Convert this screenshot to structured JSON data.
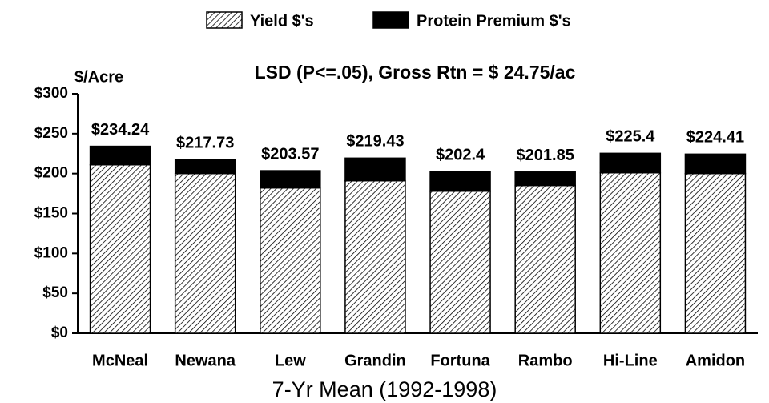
{
  "chart_data": {
    "type": "stacked_bar",
    "subtitle": "LSD (P<=.05), Gross Rtn = $ 24.75/ac",
    "y_label": "$/Acre",
    "x_label": "7-Yr Mean (1992-1998)",
    "categories": [
      "McNeal",
      "Newana",
      "Lew",
      "Grandin",
      "Fortuna",
      "Rambo",
      "Hi-Line",
      "Amidon"
    ],
    "series": [
      {
        "name": "Yield $'s",
        "color": "#000000",
        "values": [
          211,
          200,
          182,
          191,
          178,
          185,
          201,
          200
        ]
      },
      {
        "name": "Protein Premium $'s",
        "color": "#000000",
        "values": [
          23.2,
          17.7,
          21.6,
          28.4,
          24.4,
          16.9,
          24.4,
          24.4
        ]
      }
    ],
    "totals": [
      234.24,
      217.73,
      203.57,
      219.43,
      202.4,
      201.85,
      225.4,
      224.41
    ],
    "total_labels": [
      "$234.24",
      "$217.73",
      "$203.57",
      "$219.43",
      "$202.4",
      "$201.85",
      "$225.4",
      "$224.41"
    ],
    "ylim": [
      0,
      300
    ],
    "yticks": [
      {
        "value": 0,
        "label": "$0"
      },
      {
        "value": 50,
        "label": "$50"
      },
      {
        "value": 100,
        "label": "$100"
      },
      {
        "value": 150,
        "label": "$150"
      },
      {
        "value": 200,
        "label": "$200"
      },
      {
        "value": 250,
        "label": "$250"
      },
      {
        "value": 300,
        "label": "$300"
      }
    ],
    "legend": "top"
  }
}
